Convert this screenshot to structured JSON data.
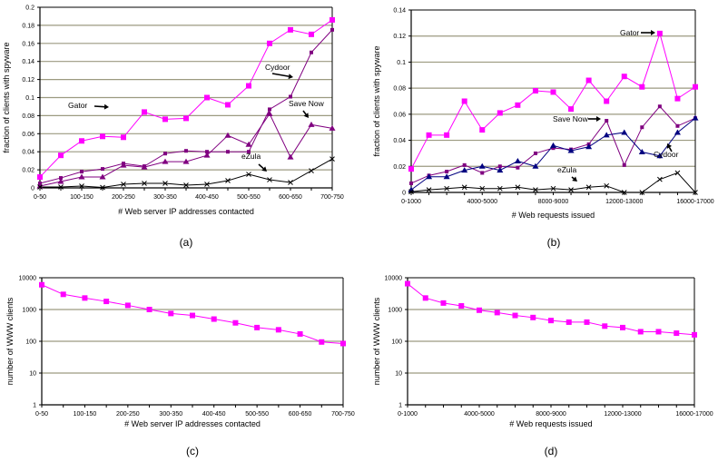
{
  "chart_data": [
    {
      "id": "a",
      "type": "line",
      "caption": "(a)",
      "xlabel": "# Web server IP addresses contacted",
      "ylabel": "fraction of clients with spyware",
      "ylim": [
        0,
        0.2
      ],
      "yscale": "linear",
      "yticks": [
        "0",
        "0.02",
        "0.04",
        "0.06",
        "0.08",
        "0.1",
        "0.12",
        "0.14",
        "0.16",
        "0.18",
        "0.2"
      ],
      "grid": true,
      "categories": [
        "0-50",
        "50-100",
        "100-150",
        "150-200",
        "200-250",
        "250-300",
        "300-350",
        "350-400",
        "400-450",
        "450-500",
        "500-550",
        "550-600",
        "600-650",
        "650-700",
        "700-750"
      ],
      "xtick_labels_shown": [
        "0-50",
        "100-150",
        "200-250",
        "300-350",
        "400-450",
        "500-550",
        "600-650",
        "700-750"
      ],
      "series": [
        {
          "name": "Gator",
          "color": "#ff00ff",
          "marker": "square",
          "values": [
            0.012,
            0.036,
            0.052,
            0.057,
            0.056,
            0.084,
            0.076,
            0.077,
            0.1,
            0.092,
            0.113,
            0.16,
            0.175,
            0.17,
            0.186
          ]
        },
        {
          "name": "Cydoor",
          "color": "#800080",
          "marker": "dot",
          "values": [
            0.005,
            0.011,
            0.018,
            0.021,
            0.027,
            0.024,
            0.038,
            0.041,
            0.04,
            0.04,
            0.04,
            0.087,
            0.101,
            0.15,
            0.175
          ]
        },
        {
          "name": "SaveNow",
          "color": "#800080",
          "marker": "triangle",
          "values": [
            0.002,
            0.007,
            0.012,
            0.012,
            0.025,
            0.023,
            0.029,
            0.029,
            0.036,
            0.058,
            0.048,
            0.082,
            0.034,
            0.07,
            0.066
          ]
        },
        {
          "name": "eZula",
          "color": "#000000",
          "marker": "cross",
          "values": [
            0.001,
            0.001,
            0.002,
            0.0005,
            0.004,
            0.005,
            0.005,
            0.003,
            0.004,
            0.008,
            0.015,
            0.009,
            0.006,
            0.019,
            0.032
          ]
        }
      ],
      "annotations": [
        {
          "text": "Gator",
          "series": "Gator",
          "at": "250-300"
        },
        {
          "text": "Cydoor",
          "series": "Cydoor",
          "at": "600-650"
        },
        {
          "text": "Save Now",
          "series": "SaveNow",
          "at": "650-700"
        },
        {
          "text": "eZula",
          "series": "eZula",
          "at": "550-600"
        }
      ]
    },
    {
      "id": "b",
      "type": "line",
      "caption": "(b)",
      "xlabel": "# Web requests issued",
      "ylabel": "fraction of clients with spyware",
      "ylim": [
        0,
        0.14
      ],
      "yscale": "linear",
      "yticks": [
        "0",
        "0.02",
        "0.04",
        "0.06",
        "0.08",
        "0.1",
        "0.12",
        "0.14"
      ],
      "grid": true,
      "categories": [
        "0-1000",
        "1000-2000",
        "2000-3000",
        "3000-4000",
        "4000-5000",
        "5000-6000",
        "6000-7000",
        "7000-8000",
        "8000-9000",
        "9000-10000",
        "10000-11000",
        "11000-12000",
        "12000-13000",
        "13000-14000",
        "14000-15000",
        "15000-16000",
        "16000-17000"
      ],
      "xtick_labels_shown": [
        "0-1000",
        "4000-5000",
        "8000-9000",
        "12000-13000",
        "16000-17000"
      ],
      "series": [
        {
          "name": "Gator",
          "color": "#ff00ff",
          "marker": "square",
          "values": [
            0.018,
            0.044,
            0.044,
            0.07,
            0.048,
            0.061,
            0.067,
            0.078,
            0.077,
            0.064,
            0.086,
            0.07,
            0.089,
            0.081,
            0.122,
            0.072,
            0.081
          ]
        },
        {
          "name": "SaveNow",
          "color": "#800080",
          "marker": "dot",
          "values": [
            0.007,
            0.013,
            0.016,
            0.021,
            0.015,
            0.02,
            0.019,
            0.03,
            0.034,
            0.033,
            0.037,
            0.055,
            0.021,
            0.05,
            0.066,
            0.051,
            0.057
          ]
        },
        {
          "name": "Cydoor",
          "color": "#000080",
          "marker": "triangle",
          "values": [
            0.002,
            0.012,
            0.012,
            0.017,
            0.02,
            0.017,
            0.024,
            0.02,
            0.036,
            0.032,
            0.035,
            0.044,
            0.046,
            0.031,
            0.028,
            0.046,
            0.057
          ]
        },
        {
          "name": "eZula",
          "color": "#000000",
          "marker": "cross",
          "values": [
            0.0005,
            0.002,
            0.003,
            0.004,
            0.003,
            0.003,
            0.004,
            0.002,
            0.003,
            0.002,
            0.004,
            0.005,
            0,
            0,
            0.01,
            0.015,
            0
          ]
        }
      ],
      "annotations": [
        {
          "text": "Gator",
          "series": "Gator",
          "at": "14000-15000"
        },
        {
          "text": "Save Now",
          "series": "SaveNow",
          "at": "11000-12000"
        },
        {
          "text": "Cydoor",
          "series": "Cydoor",
          "at": "14000-15000"
        },
        {
          "text": "eZula",
          "series": "eZula",
          "at": "10000-11000"
        }
      ]
    },
    {
      "id": "c",
      "type": "line",
      "caption": "(c)",
      "xlabel": "# Web server IP addresses contacted",
      "ylabel": "number of WWW clients",
      "ylim": [
        1,
        10000
      ],
      "yscale": "log",
      "yticks": [
        "1",
        "10",
        "100",
        "1000",
        "10000"
      ],
      "grid": true,
      "categories": [
        "0-50",
        "50-100",
        "100-150",
        "150-200",
        "200-250",
        "250-300",
        "300-350",
        "350-400",
        "400-450",
        "450-500",
        "500-550",
        "550-600",
        "600-650",
        "650-700",
        "700-750"
      ],
      "xtick_labels_shown": [
        "0-50",
        "100-150",
        "200-250",
        "300-350",
        "400-450",
        "500-550",
        "600-650",
        "700-750"
      ],
      "series": [
        {
          "name": "clients",
          "color": "#ff00ff",
          "marker": "square",
          "values": [
            6000,
            3000,
            2300,
            1800,
            1350,
            1000,
            750,
            650,
            500,
            380,
            270,
            230,
            170,
            95,
            85
          ]
        }
      ]
    },
    {
      "id": "d",
      "type": "line",
      "caption": "(d)",
      "xlabel": "# Web requests issued",
      "ylabel": "number of WWW clients",
      "ylim": [
        1,
        10000
      ],
      "yscale": "log",
      "yticks": [
        "1",
        "10",
        "100",
        "1000",
        "10000"
      ],
      "grid": true,
      "categories": [
        "0-1000",
        "1000-2000",
        "2000-3000",
        "3000-4000",
        "4000-5000",
        "5000-6000",
        "6000-7000",
        "7000-8000",
        "8000-9000",
        "9000-10000",
        "10000-11000",
        "11000-12000",
        "12000-13000",
        "13000-14000",
        "14000-15000",
        "15000-16000",
        "16000-17000"
      ],
      "xtick_labels_shown": [
        "0-1000",
        "4000-5000",
        "8000-9000",
        "12000-13000",
        "16000-17000"
      ],
      "series": [
        {
          "name": "clients",
          "color": "#ff00ff",
          "marker": "square",
          "values": [
            6500,
            2300,
            1600,
            1300,
            950,
            800,
            650,
            560,
            450,
            400,
            400,
            300,
            270,
            200,
            200,
            180,
            160
          ]
        }
      ]
    }
  ],
  "style": {
    "grid_color": "#9c9a80",
    "axis_color": "#000000"
  }
}
